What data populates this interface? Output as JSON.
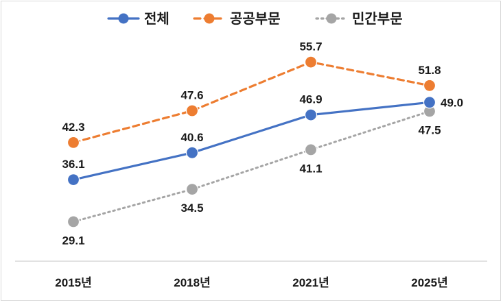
{
  "chart_data": {
    "type": "line",
    "title": "",
    "xlabel": "",
    "ylabel": "",
    "categories": [
      "2015년",
      "2018년",
      "2021년",
      "2025년"
    ],
    "ylim": [
      20,
      60
    ],
    "grid": false,
    "legend_position": "top",
    "series": [
      {
        "name": "전체",
        "values": [
          36.1,
          40.6,
          46.9,
          49.0
        ],
        "labels": [
          "36.1",
          "40.6",
          "46.9",
          "49.0"
        ],
        "color": "#4472c4",
        "dash": "solid",
        "label_pos": [
          "above",
          "above",
          "above",
          "right"
        ]
      },
      {
        "name": "공공부문",
        "values": [
          42.3,
          47.6,
          55.7,
          51.8
        ],
        "labels": [
          "42.3",
          "47.6",
          "55.7",
          "51.8"
        ],
        "color": "#ed7d31",
        "dash": "dashed",
        "label_pos": [
          "above",
          "above",
          "above",
          "above"
        ]
      },
      {
        "name": "민간부문",
        "values": [
          29.1,
          34.5,
          41.1,
          47.5
        ],
        "labels": [
          "29.1",
          "34.5",
          "41.1",
          "47.5"
        ],
        "color": "#a5a5a5",
        "dash": "dotted",
        "label_pos": [
          "below",
          "below",
          "below",
          "below"
        ]
      }
    ]
  }
}
